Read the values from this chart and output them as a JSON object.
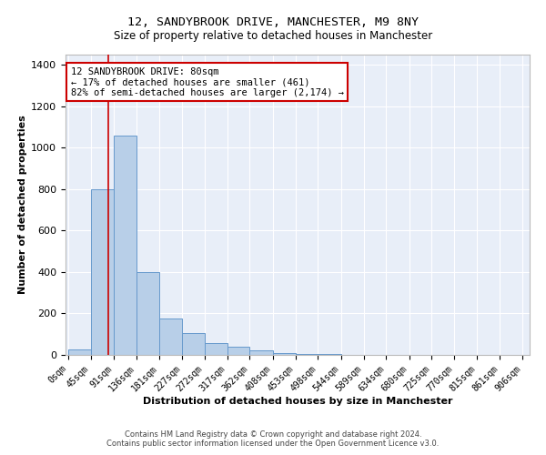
{
  "title": "12, SANDYBROOK DRIVE, MANCHESTER, M9 8NY",
  "subtitle": "Size of property relative to detached houses in Manchester",
  "xlabel": "Distribution of detached houses by size in Manchester",
  "ylabel": "Number of detached properties",
  "footnote1": "Contains HM Land Registry data © Crown copyright and database right 2024.",
  "footnote2": "Contains public sector information licensed under the Open Government Licence v3.0.",
  "annotation_line1": "12 SANDYBROOK DRIVE: 80sqm",
  "annotation_line2": "← 17% of detached houses are smaller (461)",
  "annotation_line3": "82% of semi-detached houses are larger (2,174) →",
  "property_size_sqm": 80,
  "bar_edges": [
    0,
    45,
    91,
    136,
    181,
    227,
    272,
    317,
    362,
    408,
    453,
    498,
    544,
    589,
    634,
    680,
    725,
    770,
    815,
    861,
    906
  ],
  "bar_heights": [
    25,
    800,
    1060,
    400,
    175,
    105,
    55,
    40,
    20,
    10,
    5,
    3,
    2,
    1,
    1,
    1,
    0,
    0,
    0,
    0
  ],
  "bar_color": "#b8cfe8",
  "bar_edge_color": "#6699cc",
  "vline_color": "#cc0000",
  "vline_x": 80,
  "box_color": "#cc0000",
  "ylim": [
    0,
    1450
  ],
  "yticks": [
    0,
    200,
    400,
    600,
    800,
    1000,
    1200,
    1400
  ],
  "bg_color": "#e8eef8",
  "grid_color": "#ffffff",
  "title_fontsize": 9.5,
  "subtitle_fontsize": 8.5,
  "xlabel_fontsize": 8,
  "ylabel_fontsize": 8,
  "tick_fontsize": 7,
  "annotation_fontsize": 7.5,
  "footnote_fontsize": 6
}
